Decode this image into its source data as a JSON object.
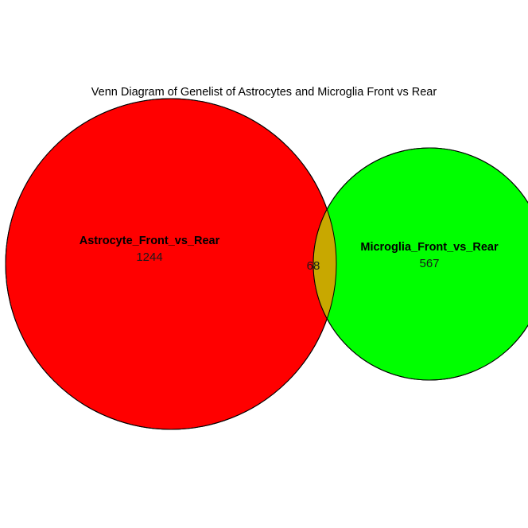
{
  "title": "Venn Diagram of Genelist of Astrocytes and Microglia Front vs Rear",
  "sets": {
    "a": {
      "name": "Astrocyte_Front_vs_Rear",
      "count": "1244",
      "color": "#ff0000"
    },
    "b": {
      "name": "Microglia_Front_vs_Rear",
      "count": "567",
      "color": "#00ff00"
    }
  },
  "intersection": {
    "count": "68",
    "color": "#c8a800"
  },
  "outline_color": "#000000"
}
